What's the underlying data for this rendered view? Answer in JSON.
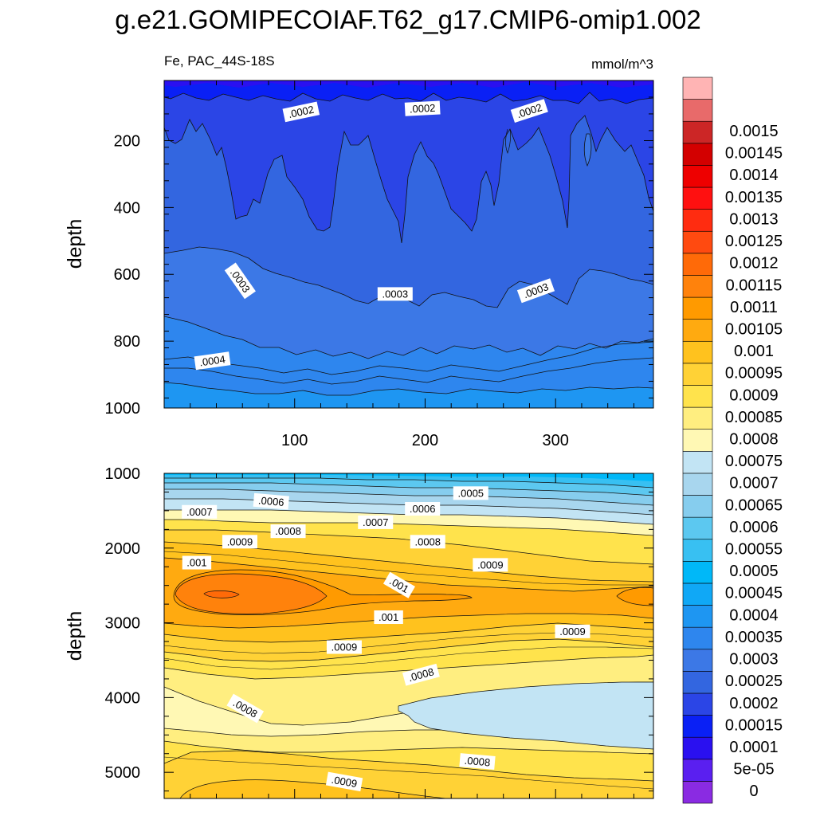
{
  "chart_data": {
    "type": "heatmap",
    "title": "g.e21.GOMIPECOIAF.T62_g17.CMIP6-omip1.002",
    "variable_label": "Fe, PAC_44S-18S",
    "units_label": "mmol/m^3",
    "colorbar": {
      "levels": [
        "0",
        "5e-05",
        "0.0001",
        "0.00015",
        "0.0002",
        "0.00025",
        "0.0003",
        "0.00035",
        "0.0004",
        "0.00045",
        "0.0005",
        "0.00055",
        "0.0006",
        "0.00065",
        "0.0007",
        "0.00075",
        "0.0008",
        "0.00085",
        "0.0009",
        "0.00095",
        "0.001",
        "0.00105",
        "0.0011",
        "0.00115",
        "0.0012",
        "0.00125",
        "0.0013",
        "0.00135",
        "0.0014",
        "0.00145",
        "0.0015"
      ],
      "colors": [
        "#8a2be2",
        "#5a1ff0",
        "#2a10f0",
        "#0a20f5",
        "#2b45e6",
        "#3366e0",
        "#3c78e6",
        "#2e86ee",
        "#1e96f2",
        "#10a8f6",
        "#00b8f8",
        "#38c0f2",
        "#5cc8f0",
        "#86cdee",
        "#a8d6ee",
        "#c2e4f4",
        "#fff8b4",
        "#ffee80",
        "#ffe34c",
        "#ffd236",
        "#ffc21e",
        "#ffaa10",
        "#ff9a00",
        "#ff820c",
        "#ff6a08",
        "#ff4a10",
        "#ff2c10",
        "#ff1010",
        "#ee0000",
        "#d30000",
        "#cc2626",
        "#e86a6a",
        "#ffb4b4"
      ]
    },
    "panels": [
      {
        "name": "upper",
        "ylabel": "depth",
        "xlim": [
          0,
          375
        ],
        "ylim": [
          1000,
          20
        ],
        "xticks": [
          100,
          200,
          300
        ],
        "xtick_labels": [
          "100",
          "200",
          "300"
        ],
        "yticks": [
          200,
          400,
          600,
          800,
          1000
        ],
        "ytick_labels": [
          "200",
          "400",
          "600",
          "800",
          "1000"
        ],
        "contour_labels": [
          {
            "text": ".0002",
            "x": 105,
            "y": 115,
            "angle": -12
          },
          {
            "text": ".0002",
            "x": 198,
            "y": 105,
            "angle": -3
          },
          {
            "text": ".0002",
            "x": 280,
            "y": 112,
            "angle": -18
          },
          {
            "text": ".0003",
            "x": 58,
            "y": 620,
            "angle": 55
          },
          {
            "text": ".0003",
            "x": 177,
            "y": 660,
            "angle": 0
          },
          {
            "text": ".0003",
            "x": 285,
            "y": 650,
            "angle": -20
          },
          {
            "text": ".0004",
            "x": 37,
            "y": 860,
            "angle": -8
          }
        ]
      },
      {
        "name": "lower",
        "ylabel": "depth",
        "xlim": [
          0,
          375
        ],
        "ylim": [
          5350,
          1000
        ],
        "yticks": [
          1000,
          2000,
          3000,
          4000,
          5000
        ],
        "ytick_labels": [
          "1000",
          "2000",
          "3000",
          "4000",
          "5000"
        ],
        "contour_labels": [
          {
            "text": ".0005",
            "x": 235,
            "y": 1270,
            "angle": 0
          },
          {
            "text": ".0006",
            "x": 82,
            "y": 1380,
            "angle": 5
          },
          {
            "text": ".0006",
            "x": 198,
            "y": 1480,
            "angle": 0
          },
          {
            "text": ".0007",
            "x": 27,
            "y": 1520,
            "angle": 0
          },
          {
            "text": ".0007",
            "x": 162,
            "y": 1660,
            "angle": 0
          },
          {
            "text": ".0008",
            "x": 95,
            "y": 1780,
            "angle": 0
          },
          {
            "text": ".0008",
            "x": 202,
            "y": 1920,
            "angle": 0
          },
          {
            "text": ".0009",
            "x": 58,
            "y": 1920,
            "angle": 0
          },
          {
            "text": ".0009",
            "x": 250,
            "y": 2230,
            "angle": 0
          },
          {
            "text": ".001",
            "x": 25,
            "y": 2200,
            "angle": 0
          },
          {
            "text": ".001",
            "x": 180,
            "y": 2500,
            "angle": 30
          },
          {
            "text": ".001",
            "x": 172,
            "y": 2930,
            "angle": 0
          },
          {
            "text": ".0009",
            "x": 313,
            "y": 3120,
            "angle": 0
          },
          {
            "text": ".0009",
            "x": 138,
            "y": 3330,
            "angle": 0
          },
          {
            "text": ".0008",
            "x": 197,
            "y": 3700,
            "angle": -15
          },
          {
            "text": ".0008",
            "x": 62,
            "y": 4150,
            "angle": 30
          },
          {
            "text": ".0008",
            "x": 240,
            "y": 4860,
            "angle": 5
          },
          {
            "text": ".0009",
            "x": 138,
            "y": 5130,
            "angle": 10
          }
        ]
      }
    ]
  }
}
